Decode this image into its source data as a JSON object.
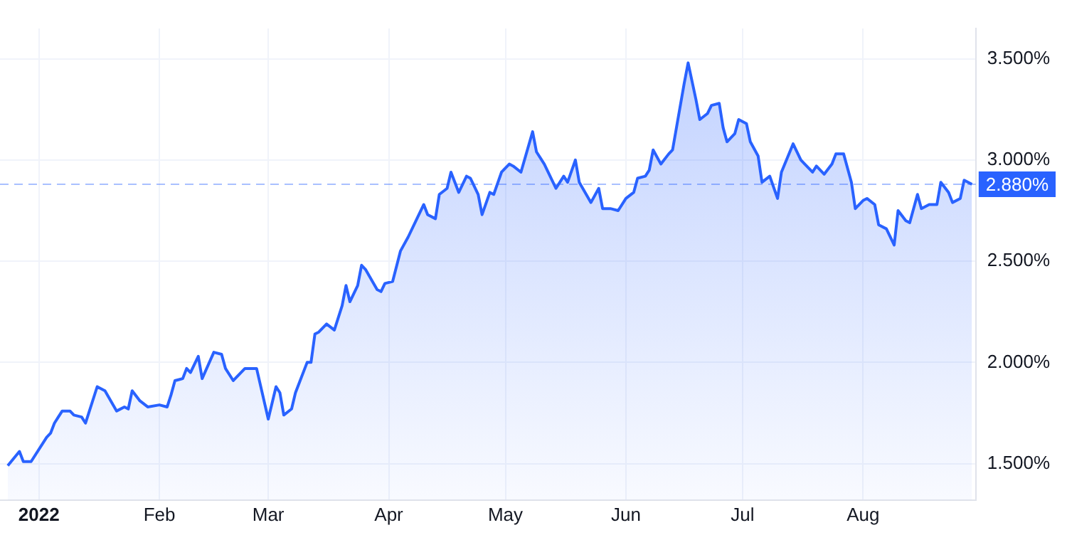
{
  "chart_data": {
    "type": "area",
    "x": [
      "2021-12-24",
      "2021-12-27",
      "2021-12-28",
      "2021-12-30",
      "2022-01-03",
      "2022-01-04",
      "2022-01-05",
      "2022-01-06",
      "2022-01-07",
      "2022-01-09",
      "2022-01-10",
      "2022-01-12",
      "2022-01-13",
      "2022-01-16",
      "2022-01-18",
      "2022-01-21",
      "2022-01-23",
      "2022-01-24",
      "2022-01-25",
      "2022-01-27",
      "2022-01-29",
      "2022-02-01",
      "2022-02-03",
      "2022-02-04",
      "2022-02-05",
      "2022-02-07",
      "2022-02-08",
      "2022-02-09",
      "2022-02-11",
      "2022-02-12",
      "2022-02-15",
      "2022-02-17",
      "2022-02-18",
      "2022-02-20",
      "2022-02-23",
      "2022-02-26",
      "2022-03-01",
      "2022-03-03",
      "2022-03-04",
      "2022-03-05",
      "2022-03-07",
      "2022-03-08",
      "2022-03-11",
      "2022-03-12",
      "2022-03-13",
      "2022-03-14",
      "2022-03-16",
      "2022-03-18",
      "2022-03-20",
      "2022-03-21",
      "2022-03-22",
      "2022-03-24",
      "2022-03-25",
      "2022-03-26",
      "2022-03-29",
      "2022-03-30",
      "2022-03-31",
      "2022-04-02",
      "2022-04-04",
      "2022-04-06",
      "2022-04-08",
      "2022-04-10",
      "2022-04-11",
      "2022-04-13",
      "2022-04-14",
      "2022-04-16",
      "2022-04-17",
      "2022-04-19",
      "2022-04-21",
      "2022-04-22",
      "2022-04-24",
      "2022-04-25",
      "2022-04-27",
      "2022-04-28",
      "2022-04-30",
      "2022-05-02",
      "2022-05-03",
      "2022-05-05",
      "2022-05-08",
      "2022-05-09",
      "2022-05-11",
      "2022-05-14",
      "2022-05-16",
      "2022-05-17",
      "2022-05-19",
      "2022-05-20",
      "2022-05-23",
      "2022-05-25",
      "2022-05-26",
      "2022-05-28",
      "2022-05-30",
      "2022-06-01",
      "2022-06-03",
      "2022-06-04",
      "2022-06-06",
      "2022-06-07",
      "2022-06-08",
      "2022-06-10",
      "2022-06-12",
      "2022-06-13",
      "2022-06-14",
      "2022-06-16",
      "2022-06-17",
      "2022-06-19",
      "2022-06-20",
      "2022-06-22",
      "2022-06-23",
      "2022-06-25",
      "2022-06-26",
      "2022-06-27",
      "2022-06-29",
      "2022-06-30",
      "2022-07-02",
      "2022-07-03",
      "2022-07-05",
      "2022-07-06",
      "2022-07-08",
      "2022-07-10",
      "2022-07-11",
      "2022-07-14",
      "2022-07-16",
      "2022-07-17",
      "2022-07-19",
      "2022-07-20",
      "2022-07-22",
      "2022-07-24",
      "2022-07-25",
      "2022-07-27",
      "2022-07-29",
      "2022-07-30",
      "2022-08-01",
      "2022-08-02",
      "2022-08-04",
      "2022-08-05",
      "2022-08-07",
      "2022-08-09",
      "2022-08-10",
      "2022-08-12",
      "2022-08-13",
      "2022-08-15",
      "2022-08-16",
      "2022-08-18",
      "2022-08-20",
      "2022-08-21",
      "2022-08-23",
      "2022-08-24",
      "2022-08-26",
      "2022-08-27",
      "2022-08-29"
    ],
    "series": [
      {
        "color": "#2962ff",
        "values": [
          1.49,
          1.56,
          1.51,
          1.51,
          1.63,
          1.65,
          1.7,
          1.73,
          1.76,
          1.76,
          1.74,
          1.73,
          1.7,
          1.88,
          1.86,
          1.76,
          1.78,
          1.77,
          1.86,
          1.81,
          1.78,
          1.79,
          1.78,
          1.84,
          1.91,
          1.92,
          1.97,
          1.95,
          2.03,
          1.92,
          2.05,
          2.04,
          1.97,
          1.91,
          1.97,
          1.97,
          1.72,
          1.88,
          1.85,
          1.74,
          1.77,
          1.85,
          2.0,
          2.0,
          2.14,
          2.15,
          2.19,
          2.16,
          2.28,
          2.38,
          2.3,
          2.38,
          2.48,
          2.46,
          2.36,
          2.35,
          2.39,
          2.4,
          2.55,
          2.62,
          2.7,
          2.78,
          2.73,
          2.71,
          2.83,
          2.86,
          2.94,
          2.84,
          2.92,
          2.91,
          2.83,
          2.73,
          2.84,
          2.83,
          2.94,
          2.98,
          2.97,
          2.94,
          3.14,
          3.04,
          2.98,
          2.86,
          2.92,
          2.89,
          3.0,
          2.89,
          2.79,
          2.86,
          2.76,
          2.76,
          2.75,
          2.81,
          2.84,
          2.91,
          2.92,
          2.95,
          3.05,
          2.98,
          3.03,
          3.05,
          3.16,
          3.38,
          3.48,
          3.3,
          3.2,
          3.23,
          3.27,
          3.28,
          3.16,
          3.09,
          3.13,
          3.2,
          3.18,
          3.09,
          3.02,
          2.89,
          2.92,
          2.81,
          2.94,
          3.08,
          3.0,
          2.98,
          2.94,
          2.97,
          2.93,
          2.98,
          3.03,
          3.03,
          2.89,
          2.76,
          2.8,
          2.81,
          2.78,
          2.68,
          2.66,
          2.58,
          2.75,
          2.7,
          2.69,
          2.83,
          2.76,
          2.78,
          2.78,
          2.89,
          2.84,
          2.79,
          2.81,
          2.9,
          2.88
        ]
      }
    ],
    "xlim": [
      "2021-12-22",
      "2022-08-30"
    ],
    "xticks": [
      {
        "value": "2022-01-01",
        "label": "2022"
      },
      {
        "value": "2022-02-01",
        "label": "Feb"
      },
      {
        "value": "2022-03-01",
        "label": "Mar"
      },
      {
        "value": "2022-04-01",
        "label": "Apr"
      },
      {
        "value": "2022-05-01",
        "label": "May"
      },
      {
        "value": "2022-06-01",
        "label": "Jun"
      },
      {
        "value": "2022-07-01",
        "label": "Jul"
      },
      {
        "value": "2022-08-01",
        "label": "Aug"
      }
    ],
    "ylim": [
      1.32,
      3.65
    ],
    "yticks": [
      {
        "value": 1.5,
        "label": "1.500%"
      },
      {
        "value": 2,
        "label": "2.000%"
      },
      {
        "value": 2.5,
        "label": "2.500%"
      },
      {
        "value": 3,
        "label": "3.000%"
      },
      {
        "value": 3.5,
        "label": "3.500%"
      }
    ],
    "grid": true,
    "marker": "none",
    "ref_lines": [
      {
        "axis": "y",
        "value": 2.88,
        "label": "2.880%",
        "color": "#2962ff",
        "line_style": "dashed"
      }
    ]
  }
}
